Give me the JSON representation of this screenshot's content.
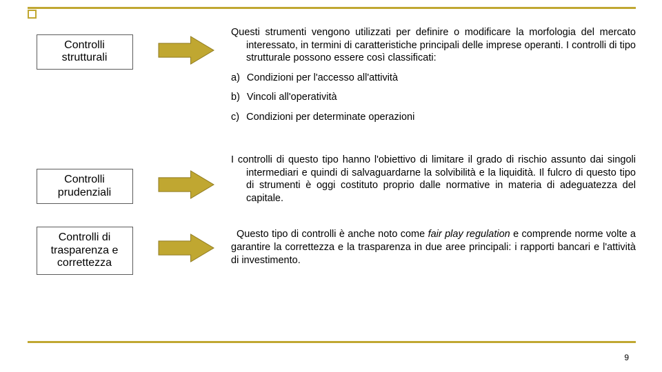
{
  "theme": {
    "rule_color": "#c0a731",
    "arrow_fill": "#c0a731",
    "arrow_stroke": "#8f7b20",
    "box_border": "#5b5b5b",
    "text_color": "#000000",
    "font_size_box": 16,
    "font_size_body": 14.5
  },
  "page_number": "9",
  "sections": [
    {
      "title_line1": "Controlli",
      "title_line2": "strutturali",
      "body": "Questi strumenti vengono utilizzati per definire o modificare la morfologia del mercato interessato, in termini di caratteristiche principali delle imprese operanti. I controlli di tipo strutturale possono essere così classificati:",
      "body_indent": true,
      "list": [
        {
          "marker": "a)",
          "text": "Condizioni per l'accesso all'attività"
        },
        {
          "marker": "b)",
          "text": "Vincoli all'operatività"
        },
        {
          "marker": "c)",
          "text": "Condizioni per determinate operazioni"
        }
      ]
    },
    {
      "title_line1": "Controlli",
      "title_line2": "prudenziali",
      "body": "I controlli di questo tipo hanno l'obiettivo di limitare il grado di rischio assunto dai singoli intermediari e quindi di salvaguardarne la solvibilità e la liquidità. Il fulcro di questo tipo di strumenti è oggi costituto proprio dalle normative in materia di adeguatezza del capitale.",
      "body_indent": true
    },
    {
      "title_line1": "Controlli di",
      "title_line2": "trasparenza e",
      "title_line3": "correttezza",
      "body_pre": "Questo tipo di controlli è anche noto come ",
      "body_italic": "fair play regulation",
      "body_post": " e comprende norme volte a garantire la correttezza e la trasparenza in due aree principali: i rapporti bancari e l'attività di investimento.",
      "body_indent": false
    }
  ],
  "arrow": {
    "width": 82,
    "height": 42,
    "shaft_height_ratio": 0.48
  }
}
